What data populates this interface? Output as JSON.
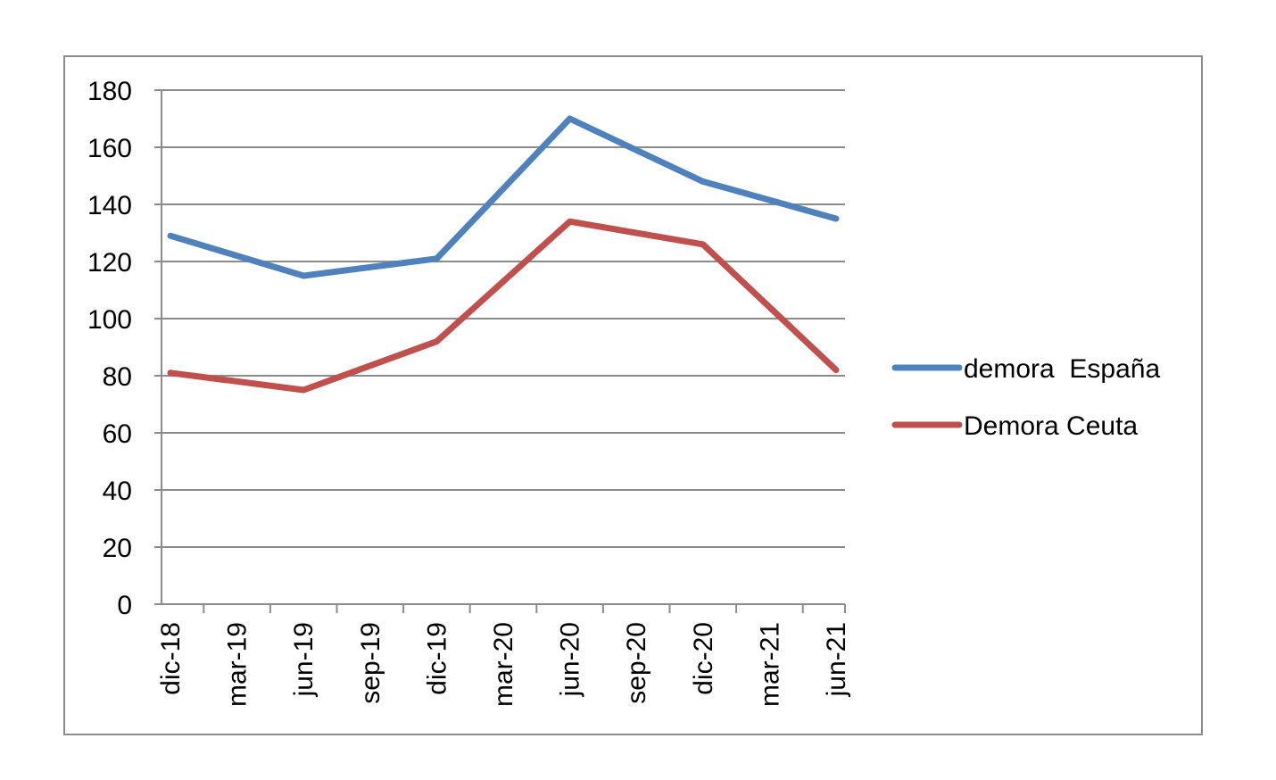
{
  "chart_data": {
    "type": "line",
    "categories": [
      "dic-18",
      "mar-19",
      "jun-19",
      "sep-19",
      "dic-19",
      "mar-20",
      "jun-20",
      "sep-20",
      "dic-20",
      "mar-21",
      "jun-21"
    ],
    "series": [
      {
        "name": "demora  España",
        "color": "#4f81bd",
        "points": [
          {
            "x": "dic-18",
            "y": 129
          },
          {
            "x": "jun-19",
            "y": 115
          },
          {
            "x": "dic-19",
            "y": 121
          },
          {
            "x": "jun-20",
            "y": 170
          },
          {
            "x": "dic-20",
            "y": 148
          },
          {
            "x": "jun-21",
            "y": 135
          }
        ]
      },
      {
        "name": "Demora Ceuta",
        "color": "#c0504d",
        "points": [
          {
            "x": "dic-18",
            "y": 81
          },
          {
            "x": "jun-19",
            "y": 75
          },
          {
            "x": "dic-19",
            "y": 92
          },
          {
            "x": "jun-20",
            "y": 134
          },
          {
            "x": "dic-20",
            "y": 126
          },
          {
            "x": "jun-21",
            "y": 82
          }
        ]
      }
    ],
    "y_ticks": [
      "0",
      "20",
      "40",
      "60",
      "80",
      "100",
      "120",
      "140",
      "160",
      "180"
    ],
    "ylim": [
      0,
      180
    ],
    "y_step": 20,
    "grid": true,
    "legend": "right",
    "title": "",
    "xlabel": "",
    "ylabel": ""
  }
}
